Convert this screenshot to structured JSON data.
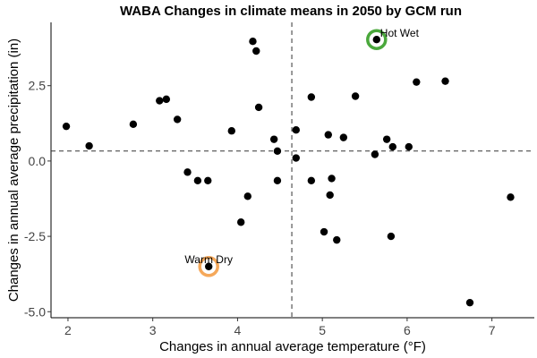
{
  "chart_data": {
    "type": "scatter",
    "title": "WABA Changes in climate means in 2050 by GCM run",
    "xlabel": "Changes in annual average temperature (°F)",
    "ylabel": "Changes in annual average precipitation (in)",
    "xlim": [
      1.8,
      7.5
    ],
    "ylim": [
      -5.2,
      4.6
    ],
    "xticks": [
      2,
      3,
      4,
      5,
      6,
      7
    ],
    "yticks": [
      -5.0,
      -2.5,
      0.0,
      2.5
    ],
    "xtick_labels": [
      "2",
      "3",
      "4",
      "5",
      "6",
      "7"
    ],
    "ytick_labels": [
      "-5.0",
      "-2.5",
      "0.0",
      "2.5"
    ],
    "grid": false,
    "vline_x": 4.64,
    "hline_y": 0.33,
    "colors": {
      "point": "#000000",
      "hot_wet": "#4aa83c",
      "warm_dry": "#f5a85a"
    },
    "points": [
      {
        "x": 1.98,
        "y": 1.15
      },
      {
        "x": 2.25,
        "y": 0.5
      },
      {
        "x": 2.77,
        "y": 1.22
      },
      {
        "x": 3.08,
        "y": 2.0
      },
      {
        "x": 3.16,
        "y": 2.05
      },
      {
        "x": 3.29,
        "y": 1.38
      },
      {
        "x": 3.41,
        "y": -0.37
      },
      {
        "x": 3.53,
        "y": -0.65
      },
      {
        "x": 3.65,
        "y": -0.65
      },
      {
        "x": 3.66,
        "y": -3.5
      },
      {
        "x": 3.93,
        "y": 1.0
      },
      {
        "x": 4.04,
        "y": -2.03
      },
      {
        "x": 4.12,
        "y": -1.17
      },
      {
        "x": 4.18,
        "y": 3.97
      },
      {
        "x": 4.22,
        "y": 3.65
      },
      {
        "x": 4.25,
        "y": 1.78
      },
      {
        "x": 4.43,
        "y": 0.72
      },
      {
        "x": 4.47,
        "y": 0.33
      },
      {
        "x": 4.47,
        "y": -0.65
      },
      {
        "x": 4.69,
        "y": 1.03
      },
      {
        "x": 4.69,
        "y": 0.1
      },
      {
        "x": 4.87,
        "y": 2.12
      },
      {
        "x": 4.87,
        "y": -0.65
      },
      {
        "x": 5.02,
        "y": -2.35
      },
      {
        "x": 5.07,
        "y": 0.87
      },
      {
        "x": 5.09,
        "y": -1.13
      },
      {
        "x": 5.11,
        "y": -0.58
      },
      {
        "x": 5.17,
        "y": -2.62
      },
      {
        "x": 5.25,
        "y": 0.78
      },
      {
        "x": 5.39,
        "y": 2.15
      },
      {
        "x": 5.62,
        "y": 0.22
      },
      {
        "x": 5.64,
        "y": 4.03
      },
      {
        "x": 5.76,
        "y": 0.72
      },
      {
        "x": 5.81,
        "y": -2.5
      },
      {
        "x": 5.83,
        "y": 0.47
      },
      {
        "x": 6.02,
        "y": 0.47
      },
      {
        "x": 6.11,
        "y": 2.62
      },
      {
        "x": 6.45,
        "y": 2.65
      },
      {
        "x": 6.74,
        "y": -4.7
      },
      {
        "x": 7.22,
        "y": -1.2
      }
    ],
    "annotations": [
      {
        "label": "Hot Wet",
        "x": 5.64,
        "y": 4.03,
        "color_key": "hot_wet"
      },
      {
        "label": "Warm Dry",
        "x": 3.66,
        "y": -3.5,
        "color_key": "warm_dry"
      }
    ]
  }
}
